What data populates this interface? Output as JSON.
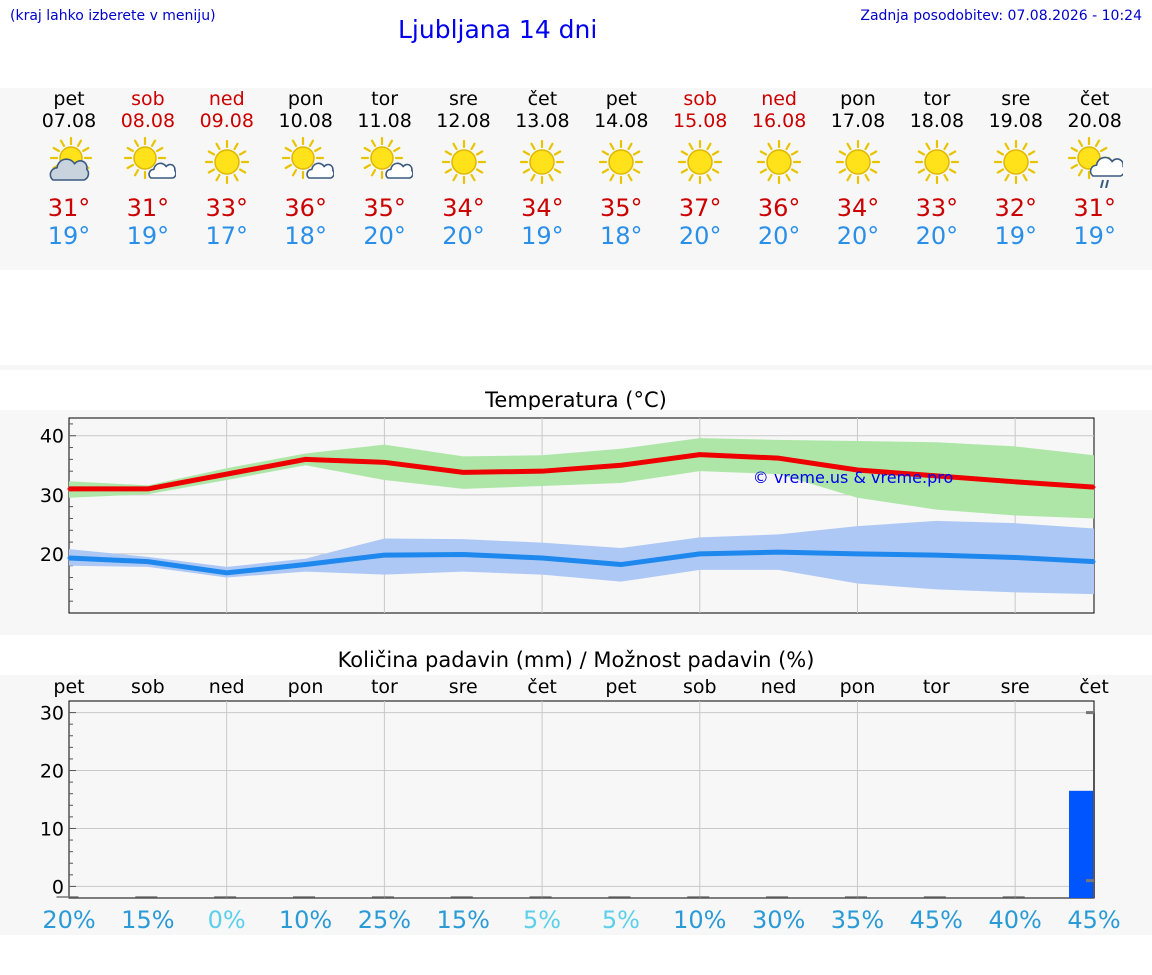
{
  "header": {
    "hint": "(kraj lahko izberete v meniju)",
    "title": "Ljubljana 14 dni",
    "updated": "Zadnja posodobitev: 07.08.2026 - 10:24"
  },
  "days": [
    {
      "name": "pet",
      "date": "07.08",
      "weekend": false,
      "icon": "sun-cloud-icon",
      "tmax": "31°",
      "tmin": "19°"
    },
    {
      "name": "sob",
      "date": "08.08",
      "weekend": true,
      "icon": "sun-small-cloud-icon",
      "tmax": "31°",
      "tmin": "19°"
    },
    {
      "name": "ned",
      "date": "09.08",
      "weekend": true,
      "icon": "sun-icon",
      "tmax": "33°",
      "tmin": "17°"
    },
    {
      "name": "pon",
      "date": "10.08",
      "weekend": false,
      "icon": "sun-small-cloud-icon",
      "tmax": "36°",
      "tmin": "18°"
    },
    {
      "name": "tor",
      "date": "11.08",
      "weekend": false,
      "icon": "sun-small-cloud-icon",
      "tmax": "35°",
      "tmin": "20°"
    },
    {
      "name": "sre",
      "date": "12.08",
      "weekend": false,
      "icon": "sun-icon",
      "tmax": "34°",
      "tmin": "20°"
    },
    {
      "name": "čet",
      "date": "13.08",
      "weekend": false,
      "icon": "sun-icon",
      "tmax": "34°",
      "tmin": "19°"
    },
    {
      "name": "pet",
      "date": "14.08",
      "weekend": false,
      "icon": "sun-icon",
      "tmax": "35°",
      "tmin": "18°"
    },
    {
      "name": "sob",
      "date": "15.08",
      "weekend": true,
      "icon": "sun-icon",
      "tmax": "37°",
      "tmin": "20°"
    },
    {
      "name": "ned",
      "date": "16.08",
      "weekend": true,
      "icon": "sun-icon",
      "tmax": "36°",
      "tmin": "20°"
    },
    {
      "name": "pon",
      "date": "17.08",
      "weekend": false,
      "icon": "sun-icon",
      "tmax": "34°",
      "tmin": "20°"
    },
    {
      "name": "tor",
      "date": "18.08",
      "weekend": false,
      "icon": "sun-icon",
      "tmax": "33°",
      "tmin": "20°"
    },
    {
      "name": "sre",
      "date": "19.08",
      "weekend": false,
      "icon": "sun-icon",
      "tmax": "32°",
      "tmin": "19°"
    },
    {
      "name": "čet",
      "date": "20.08",
      "weekend": false,
      "icon": "sun-rain-icon",
      "tmax": "31°",
      "tmin": "19°"
    }
  ],
  "colors": {
    "max_line": "#ee0000",
    "max_band": "#aee6a8",
    "min_line": "#1e88ee",
    "min_band": "#aec8f5",
    "rain_bar": "#0055ff",
    "weekend": "#cc0000",
    "link": "#0000ee"
  },
  "chart_data": [
    {
      "type": "line",
      "title": "Temperatura (°C)",
      "watermark": "© vreme.us & vreme.pro",
      "ylim": [
        10,
        43
      ],
      "yticks": [
        20,
        30,
        40
      ],
      "grid": true,
      "series": [
        {
          "values": [
            31,
            31,
            33.5,
            36,
            35.5,
            33.8,
            34,
            35,
            36.8,
            36.2,
            34.2,
            33.2,
            32.2,
            31.3
          ],
          "band_low": [
            29.5,
            30.1,
            32.5,
            35,
            32.5,
            31,
            31.5,
            32,
            34,
            33.5,
            29.5,
            27.5,
            26.5,
            26
          ],
          "band_high": [
            32.3,
            31.6,
            34.5,
            37,
            38.5,
            36.5,
            36.7,
            37.8,
            39.6,
            39.3,
            39.1,
            38.9,
            38.2,
            36.7
          ]
        },
        {
          "values": [
            19.3,
            18.7,
            16.8,
            18.2,
            19.8,
            19.9,
            19.3,
            18.2,
            20,
            20.3,
            20,
            19.8,
            19.4,
            18.7
          ],
          "band_low": [
            18,
            17.8,
            16,
            17,
            16.5,
            17,
            16.5,
            15.3,
            17.3,
            17.3,
            15,
            14,
            13.5,
            13.2
          ],
          "band_high": [
            20.8,
            19.5,
            17.8,
            19.2,
            22.6,
            22.5,
            21.9,
            21,
            22.8,
            23.3,
            24.7,
            25.6,
            25.2,
            24.3
          ]
        }
      ]
    },
    {
      "type": "bar",
      "title": "Količina padavin (mm) / Možnost padavin (%)",
      "categories": [
        "pet",
        "sob",
        "ned",
        "pon",
        "tor",
        "sre",
        "čet",
        "pet",
        "sob",
        "ned",
        "pon",
        "tor",
        "sre",
        "čet"
      ],
      "values": [
        0,
        0,
        0,
        0,
        0,
        0,
        0,
        0,
        0,
        0,
        0,
        0,
        0,
        16.5
      ],
      "ylim": [
        -2,
        32
      ],
      "yticks": [
        0,
        10,
        20,
        30
      ],
      "probability": [
        "20%",
        "15%",
        "0%",
        "10%",
        "25%",
        "15%",
        "5%",
        "5%",
        "10%",
        "30%",
        "35%",
        "45%",
        "40%",
        "45%"
      ],
      "probability_values": [
        20,
        15,
        0,
        10,
        25,
        15,
        5,
        5,
        10,
        30,
        35,
        45,
        40,
        45
      ]
    }
  ]
}
